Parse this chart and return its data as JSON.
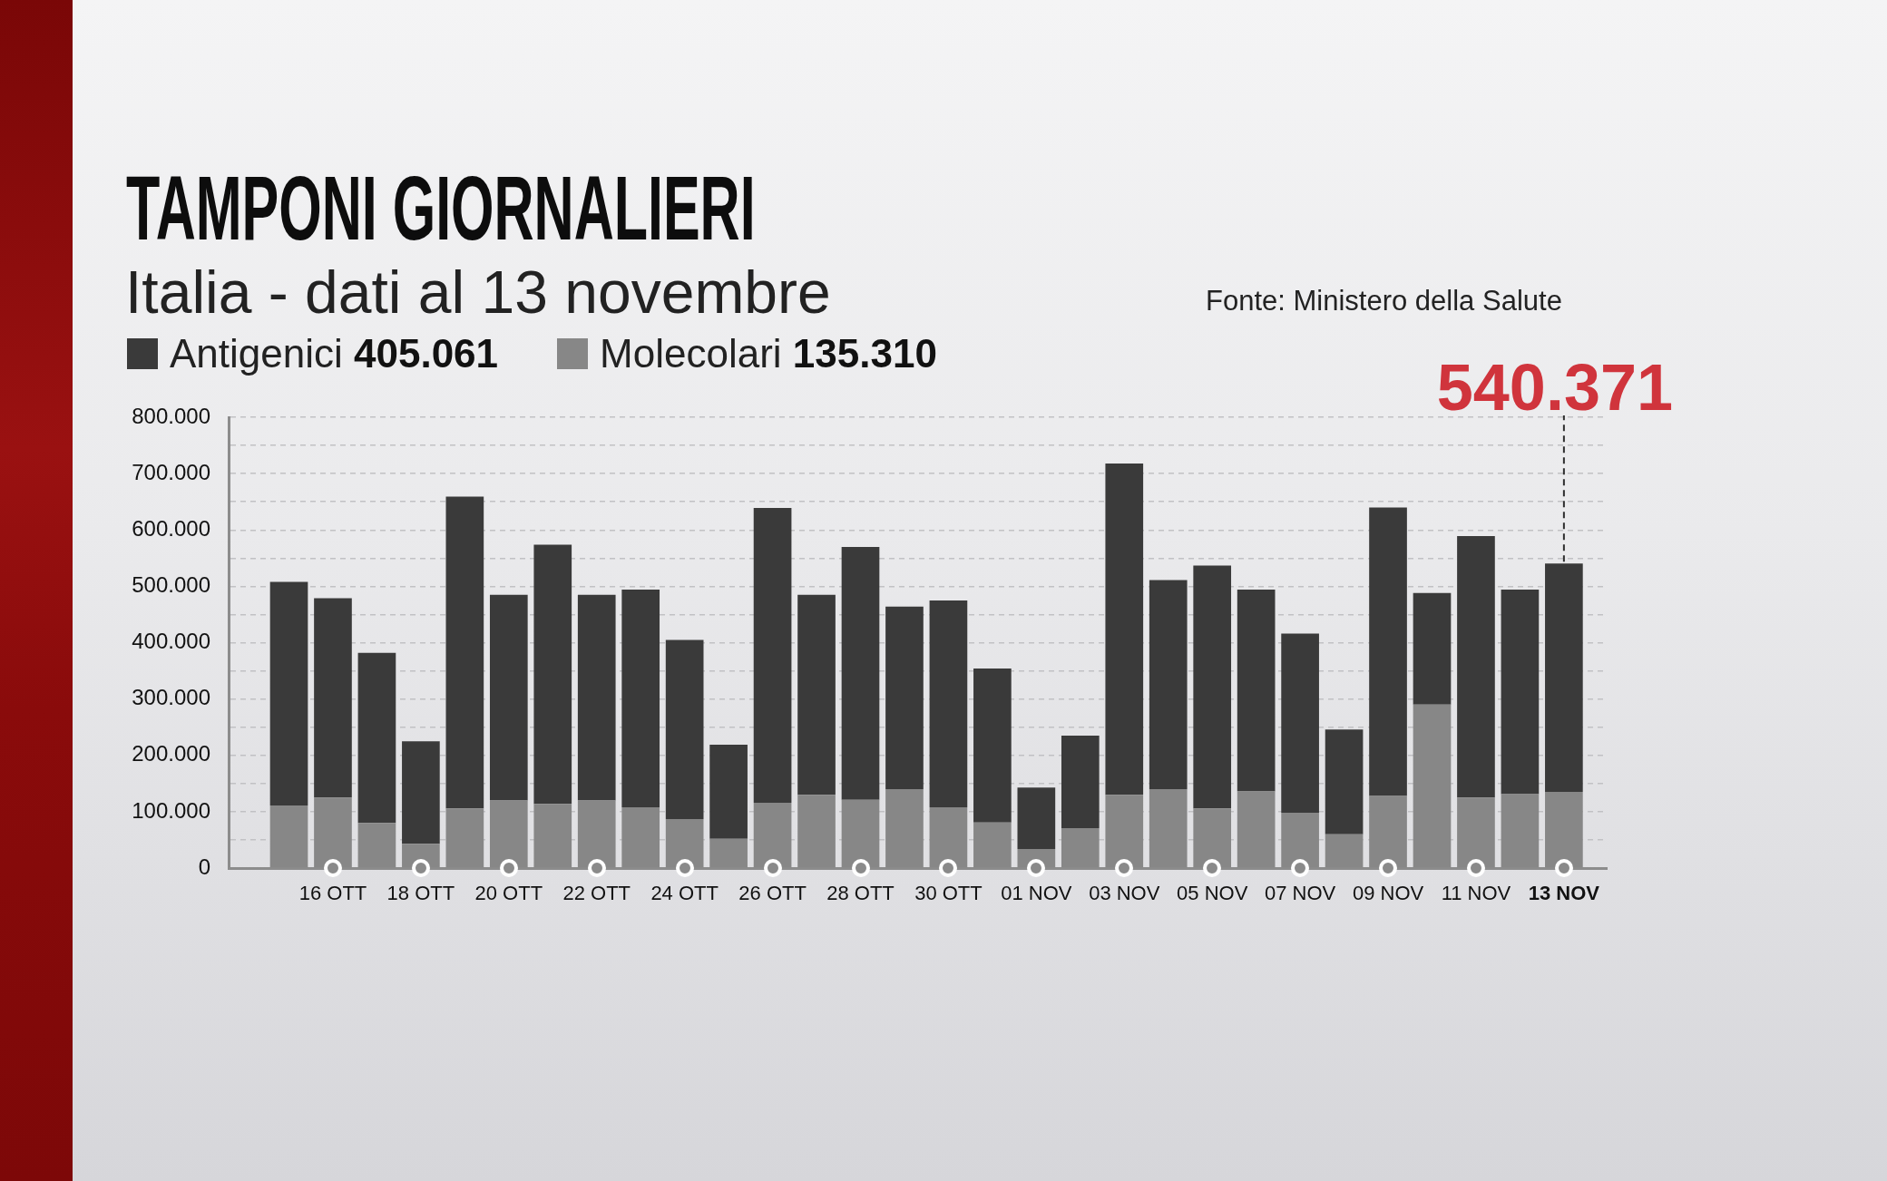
{
  "chart_data": {
    "type": "bar",
    "title": "TAMPONI GIORNALIERI",
    "subtitle": "Italia - dati al 13 novembre",
    "annotations": [
      "Fonte: Ministero della Salute",
      {
        "text": "540.371",
        "x": "13 NOV",
        "y": 540371
      }
    ],
    "categories": [
      null,
      "16 OTT",
      null,
      "18 OTT",
      null,
      "20 OTT",
      null,
      "22 OTT",
      null,
      "24 OTT",
      null,
      "26 OTT",
      null,
      "28 OTT",
      null,
      "30 OTT",
      null,
      "01 NOV",
      null,
      "03 NOV",
      null,
      "05 NOV",
      null,
      "07 NOV",
      null,
      "09 NOV",
      null,
      "11 NOV",
      null,
      "13 NOV"
    ],
    "series": [
      {
        "name": "Molecolari 135.310",
        "color": "#878787",
        "values": [
          111000,
          125000,
          80000,
          43000,
          106000,
          120000,
          114000,
          120000,
          108000,
          87000,
          52000,
          116000,
          130000,
          121000,
          140000,
          108000,
          81000,
          34000,
          71000,
          130000,
          140000,
          106000,
          136000,
          98000,
          60000,
          128000,
          290000,
          125000,
          131000,
          135310
        ]
      },
      {
        "name": "Antigenici 405.061",
        "color": "#3a3a3a",
        "values": [
          397000,
          354000,
          302000,
          182000,
          553000,
          365000,
          460000,
          365000,
          386000,
          318000,
          167000,
          523000,
          355000,
          449000,
          324000,
          367000,
          273000,
          109000,
          164000,
          588000,
          371000,
          431000,
          358000,
          318000,
          186000,
          512000,
          198000,
          464000,
          363000,
          405061
        ]
      }
    ],
    "stacked": true,
    "ylim": [
      0,
      800000
    ],
    "yticks": [
      0,
      {
        "value": 50000,
        "label": null
      },
      {
        "value": 100000,
        "label": "100.000"
      },
      {
        "value": 150000,
        "label": null
      },
      {
        "value": 200000,
        "label": "200.000"
      },
      {
        "value": 250000,
        "label": null
      },
      {
        "value": 300000,
        "label": "300.000"
      },
      {
        "value": 350000,
        "label": null
      },
      {
        "value": 400000,
        "label": "400.000"
      },
      {
        "value": 450000,
        "label": null
      },
      {
        "value": 500000,
        "label": "500.000"
      },
      {
        "value": 550000,
        "label": null
      },
      {
        "value": 600000,
        "label": "600.000"
      },
      {
        "value": 650000,
        "label": null
      },
      {
        "value": 700000,
        "label": "700.000"
      },
      {
        "value": 750000,
        "label": null
      },
      {
        "value": 800000,
        "label": "800.000"
      }
    ],
    "grid": "y",
    "legend": "top left"
  }
}
